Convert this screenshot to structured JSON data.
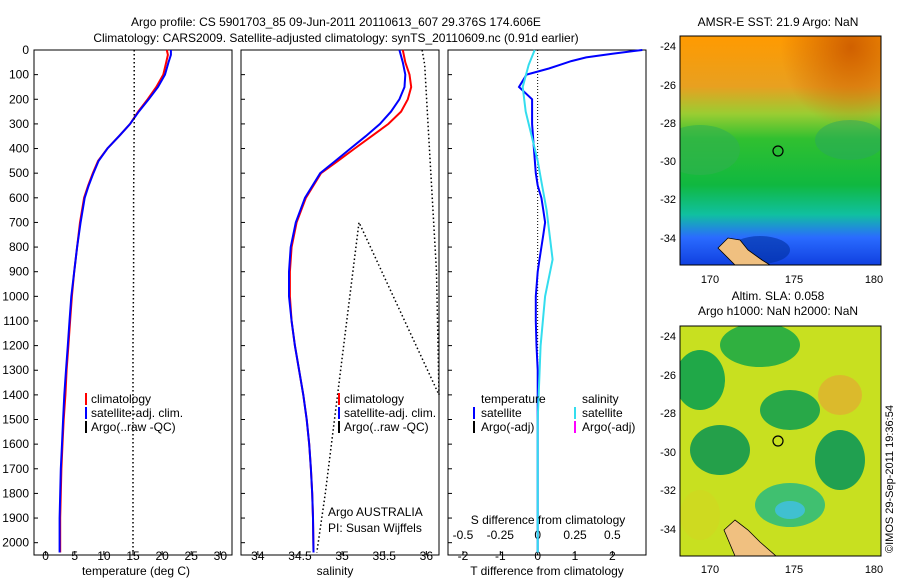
{
  "header": {
    "line1": "Argo profile: CS 5901703_85 09-Jun-2011 20110613_607 29.376S 174.606E",
    "line2": "Climatology: CARS2009. Satellite-adjusted climatology: synTS_20110609.nc (0.91d earlier)"
  },
  "colors": {
    "climatology": "#ff0000",
    "satellite": "#0000ff",
    "argo": "#000000",
    "salinity_satellite": "#33ddee",
    "salinity_argo": "#ff00ff"
  },
  "depth_axis": {
    "ticks": [
      "0",
      "100",
      "200",
      "300",
      "400",
      "500",
      "600",
      "700",
      "800",
      "900",
      "1000",
      "1100",
      "1200",
      "1300",
      "1400",
      "1500",
      "1600",
      "1700",
      "1800",
      "1900",
      "2000"
    ],
    "ylim": [
      0,
      2050
    ]
  },
  "chart_data": [
    {
      "type": "line",
      "xlabel": "temperature (deg C)",
      "xlim": [
        -2,
        32
      ],
      "xticks": [
        "0",
        "5",
        "10",
        "15",
        "20",
        "25",
        "30"
      ],
      "ylim": [
        2050,
        0
      ],
      "legend": {
        "climatology": "climatology",
        "satellite": "satellite-adj. clim.",
        "argo": "Argo(..raw -QC)"
      },
      "series": [
        {
          "name": "climatology",
          "color": "#ff0000",
          "x": [
            20.8,
            21.0,
            20.7,
            20.2,
            19.0,
            17.5,
            15.9,
            14.5,
            12.6,
            10.6,
            9.0,
            8.1,
            7.3,
            6.6,
            5.9,
            5.4,
            4.9,
            4.5,
            4.2,
            3.9,
            3.6,
            3.4,
            3.1,
            2.9,
            2.7,
            2.6,
            2.5,
            2.5
          ],
          "y": [
            0,
            20,
            50,
            100,
            150,
            200,
            250,
            300,
            350,
            400,
            450,
            500,
            550,
            600,
            700,
            800,
            900,
            1000,
            1100,
            1200,
            1300,
            1400,
            1500,
            1600,
            1700,
            1800,
            1900,
            2040
          ]
        },
        {
          "name": "satellite",
          "color": "#0000ff",
          "x": [
            21.5,
            21.5,
            21.1,
            20.5,
            19.3,
            17.7,
            16.0,
            14.5,
            12.6,
            10.6,
            9.1,
            8.2,
            7.4,
            6.7,
            6.0,
            5.4,
            4.9,
            4.4,
            4.1,
            3.8,
            3.5,
            3.2,
            3.0,
            2.8,
            2.6,
            2.5,
            2.4,
            2.4
          ],
          "y": [
            0,
            20,
            50,
            100,
            150,
            200,
            250,
            300,
            350,
            400,
            450,
            500,
            550,
            600,
            700,
            800,
            900,
            1000,
            1100,
            1200,
            1300,
            1400,
            1500,
            1600,
            1700,
            1800,
            1900,
            2040
          ]
        },
        {
          "name": "argo",
          "color": "#000000",
          "dotted": true,
          "x": [
            15.2,
            15.2,
            15.1,
            15.1,
            15.0,
            15.0,
            15.0,
            15.0
          ],
          "y": [
            0,
            300,
            600,
            900,
            1200,
            1500,
            1800,
            2040
          ]
        }
      ]
    },
    {
      "type": "line",
      "xlabel": "salinity",
      "xlim": [
        33.8,
        36.15
      ],
      "xticks": [
        "34",
        "34.5",
        "35",
        "35.5",
        "36"
      ],
      "ylim": [
        2050,
        0
      ],
      "legend": {
        "climatology": "climatology",
        "satellite": "satellite-adj. clim.",
        "argo": "Argo(..raw -QC)"
      },
      "annotation": [
        "Argo AUSTRALIA",
        "PI: Susan Wijffels"
      ],
      "series": [
        {
          "name": "climatology",
          "color": "#ff0000",
          "x": [
            35.72,
            35.75,
            35.8,
            35.82,
            35.78,
            35.7,
            35.55,
            35.35,
            35.15,
            34.95,
            34.75,
            34.57,
            34.46,
            34.4,
            34.38,
            34.38,
            34.4,
            34.44,
            34.49,
            34.54,
            34.58,
            34.61,
            34.63,
            34.645,
            34.655,
            34.66
          ],
          "y": [
            0,
            50,
            100,
            150,
            200,
            250,
            300,
            350,
            400,
            450,
            500,
            600,
            700,
            800,
            900,
            1000,
            1100,
            1200,
            1300,
            1400,
            1500,
            1600,
            1700,
            1800,
            1900,
            2040
          ]
        },
        {
          "name": "satellite",
          "color": "#0000ff",
          "x": [
            35.68,
            35.72,
            35.75,
            35.74,
            35.68,
            35.58,
            35.45,
            35.28,
            35.1,
            34.92,
            34.74,
            34.56,
            34.45,
            34.39,
            34.37,
            34.37,
            34.4,
            34.44,
            34.49,
            34.54,
            34.58,
            34.61,
            34.63,
            34.645,
            34.655,
            34.66
          ],
          "y": [
            0,
            50,
            100,
            150,
            200,
            250,
            300,
            350,
            400,
            450,
            500,
            600,
            700,
            800,
            900,
            1000,
            1100,
            1200,
            1300,
            1400,
            1500,
            1600,
            1700,
            1800,
            1900,
            2040
          ]
        },
        {
          "name": "argo",
          "color": "#000000",
          "dotted": true,
          "x": [
            35.95,
            35.98,
            36.02,
            36.12,
            36.15,
            35.2,
            34.8,
            34.7
          ],
          "y": [
            0,
            60,
            300,
            900,
            1400,
            700,
            1800,
            2040
          ]
        }
      ]
    },
    {
      "type": "line",
      "xlabel": "T difference from climatology",
      "xlabel2": "S difference from climatology",
      "xlim": [
        -2.4,
        2.9
      ],
      "xticks": [
        "-2",
        "-1",
        "0",
        "1",
        "2"
      ],
      "xticks2": [
        "-0.5",
        "-0.25",
        "0",
        "0.25",
        "0.5"
      ],
      "ylim": [
        2050,
        0
      ],
      "legend": {
        "temperature": "temperature",
        "salinity": "salinity",
        "satellite": "satellite",
        "argo": "Argo(-adj)"
      },
      "series": [
        {
          "name": "temperature satellite",
          "color": "#0000ff",
          "x": [
            2.8,
            2.0,
            1.3,
            0.9,
            0.6,
            0.3,
            -0.3,
            -0.5,
            -0.15,
            -0.15,
            -0.1,
            -0.05,
            0.0,
            0.1,
            0.15,
            0.2,
            0.15,
            0.1,
            0.05,
            0.0,
            -0.05,
            -0.05,
            -0.03,
            0.0,
            0.0,
            0.0,
            0.0,
            0.0,
            0.0
          ],
          "y": [
            0,
            15,
            30,
            45,
            60,
            75,
            100,
            150,
            200,
            300,
            400,
            500,
            550,
            600,
            650,
            700,
            750,
            800,
            850,
            900,
            1000,
            1100,
            1200,
            1300,
            1400,
            1500,
            1700,
            1900,
            2040
          ]
        },
        {
          "name": "salinity satellite",
          "color": "#33ddee",
          "x": [
            -0.02,
            -0.06,
            -0.1,
            -0.08,
            -0.04,
            0.0,
            0.03,
            0.06,
            0.08,
            0.1,
            0.05,
            0.02,
            0.0,
            0.0,
            0.0
          ],
          "y": [
            0,
            60,
            150,
            250,
            350,
            450,
            550,
            650,
            750,
            850,
            1000,
            1200,
            1500,
            1800,
            2040
          ]
        }
      ]
    }
  ],
  "maps": {
    "sst": {
      "title": "AMSR-E SST: 21.9 Argo: NaN",
      "xticks": [
        "170",
        "175",
        "180"
      ],
      "yticks": [
        "-24",
        "-26",
        "-28",
        "-30",
        "-32",
        "-34"
      ]
    },
    "sla": {
      "title1": "Altim. SLA: 0.058",
      "title2": "Argo h1000: NaN h2000: NaN",
      "xticks": [
        "170",
        "175",
        "180"
      ],
      "yticks": [
        "-24",
        "-26",
        "-28",
        "-30",
        "-32",
        "-34"
      ]
    }
  },
  "footer": {
    "watermark": "©IMOS 29-Sep-2011 19:36:54"
  }
}
